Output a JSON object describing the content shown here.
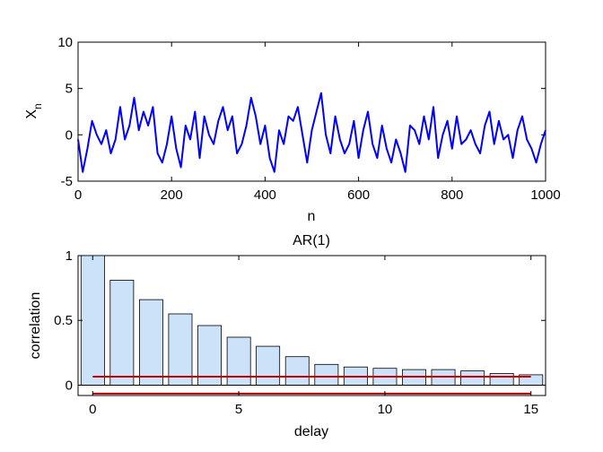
{
  "chart_data": [
    {
      "type": "line",
      "title": "",
      "xlabel": "n",
      "ylabel": "X",
      "ylabel_subscript": "n",
      "xlim": [
        0,
        1000
      ],
      "ylim": [
        -5,
        10
      ],
      "xticks": [
        0,
        200,
        400,
        600,
        800,
        1000
      ],
      "yticks": [
        -5,
        0,
        5,
        10
      ],
      "series": [
        {
          "color": "#0000ff",
          "x": [
            0,
            10,
            20,
            30,
            40,
            50,
            60,
            70,
            80,
            90,
            100,
            110,
            120,
            130,
            140,
            150,
            160,
            170,
            180,
            190,
            200,
            210,
            220,
            230,
            240,
            250,
            260,
            270,
            280,
            290,
            300,
            310,
            320,
            330,
            340,
            350,
            360,
            370,
            380,
            390,
            400,
            410,
            420,
            430,
            440,
            450,
            460,
            470,
            480,
            490,
            500,
            510,
            520,
            530,
            540,
            550,
            560,
            570,
            580,
            590,
            600,
            610,
            620,
            630,
            640,
            650,
            660,
            670,
            680,
            690,
            700,
            710,
            720,
            730,
            740,
            750,
            760,
            770,
            780,
            790,
            800,
            810,
            820,
            830,
            840,
            850,
            860,
            870,
            880,
            890,
            900,
            910,
            920,
            930,
            940,
            950,
            960,
            970,
            980,
            990,
            1000
          ],
          "values": [
            -0.5,
            -4.0,
            -1.5,
            1.5,
            0.0,
            -1.0,
            0.5,
            -2.0,
            -0.5,
            3.0,
            -0.5,
            1.0,
            4.0,
            0.5,
            2.5,
            1.0,
            3.0,
            -2.0,
            -3.0,
            -1.0,
            2.0,
            -1.5,
            -3.5,
            1.0,
            -0.5,
            2.5,
            -2.5,
            2.0,
            0.0,
            -1.0,
            1.5,
            3.0,
            0.5,
            2.0,
            -2.0,
            -1.0,
            1.0,
            4.0,
            2.0,
            -1.0,
            1.0,
            -2.5,
            -4.0,
            0.5,
            -1.0,
            2.0,
            1.5,
            3.0,
            0.0,
            -3.0,
            0.5,
            2.5,
            4.5,
            0.0,
            -2.0,
            2.0,
            -0.5,
            -2.0,
            -1.0,
            1.5,
            -2.5,
            0.5,
            2.5,
            -1.0,
            -2.5,
            1.0,
            -1.5,
            -3.0,
            -0.5,
            -2.0,
            -4.0,
            1.0,
            0.5,
            -1.0,
            2.0,
            -0.5,
            3.0,
            -2.5,
            0.0,
            1.5,
            -1.5,
            2.0,
            -1.0,
            -0.5,
            0.5,
            -1.0,
            -2.0,
            1.0,
            2.5,
            -1.0,
            1.5,
            -0.5,
            0.0,
            -2.5,
            0.5,
            2.0,
            -0.5,
            -1.5,
            -3.0,
            -1.0,
            0.5
          ]
        }
      ]
    },
    {
      "type": "bar",
      "title": "AR(1)",
      "xlabel": "delay",
      "ylabel": "correlation",
      "xlim": [
        -0.5,
        15.5
      ],
      "ylim": [
        -0.08,
        1
      ],
      "xticks": [
        0,
        5,
        10,
        15
      ],
      "yticks": [
        0,
        0.5,
        1
      ],
      "bar_color": "#cce2f8",
      "categories": [
        0,
        1,
        2,
        3,
        4,
        5,
        6,
        7,
        8,
        9,
        10,
        11,
        12,
        13,
        14,
        15
      ],
      "values": [
        1.0,
        0.81,
        0.66,
        0.55,
        0.46,
        0.37,
        0.3,
        0.22,
        0.16,
        0.14,
        0.13,
        0.12,
        0.12,
        0.11,
        0.09,
        0.08
      ],
      "reference_lines": [
        {
          "y": 0.065,
          "x_from": 0,
          "x_to": 15,
          "color": "#cc0000"
        },
        {
          "y": -0.065,
          "x_from": 0,
          "x_to": 15,
          "color": "#aa0000"
        }
      ]
    }
  ]
}
